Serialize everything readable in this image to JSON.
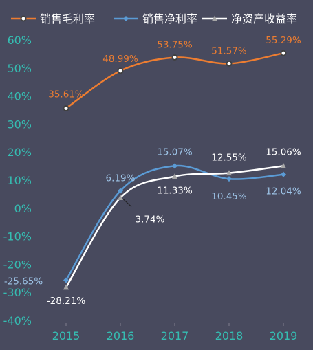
{
  "chart_data": {
    "type": "line",
    "categories": [
      "2015",
      "2016",
      "2017",
      "2018",
      "2019"
    ],
    "ylim": [
      -40,
      60
    ],
    "yticks": [
      -40,
      -30,
      -20,
      -10,
      0,
      10,
      20,
      30,
      40,
      50,
      60
    ],
    "ytick_labels": [
      "-40%",
      "-30%",
      "-20%",
      "-10%",
      "0%",
      "10%",
      "20%",
      "30%",
      "40%",
      "50%",
      "60%"
    ],
    "grid": false,
    "legend_position": "top",
    "series": [
      {
        "name": "销售毛利率",
        "values": [
          35.61,
          48.99,
          53.75,
          51.57,
          55.29
        ],
        "labels": [
          "35.61%",
          "48.99%",
          "53.75%",
          "51.57%",
          "55.29%"
        ],
        "color": "#ed7d31",
        "label_color": "#ed7d31",
        "marker": "circle"
      },
      {
        "name": "销售净利率",
        "values": [
          -25.65,
          6.19,
          15.07,
          10.45,
          12.04
        ],
        "labels": [
          "-25.65%",
          "6.19%",
          "15.07%",
          "10.45%",
          "12.04%"
        ],
        "color": "#5b9bd5",
        "label_color": "#9dc3e6",
        "marker": "diamond"
      },
      {
        "name": "净资产收益率",
        "values": [
          -28.21,
          3.74,
          11.33,
          12.55,
          15.06
        ],
        "labels": [
          "-28.21%",
          "3.74%",
          "11.33%",
          "12.55%",
          "15.06%"
        ],
        "color": "#ffffff",
        "label_color": "#ffffff",
        "marker": "triangle",
        "marker_color": "#a6a6a6"
      }
    ]
  },
  "colors": {
    "background": "#484a5e",
    "tick_label": "#35bdb2",
    "tick_mark": "#7f7f8f"
  }
}
